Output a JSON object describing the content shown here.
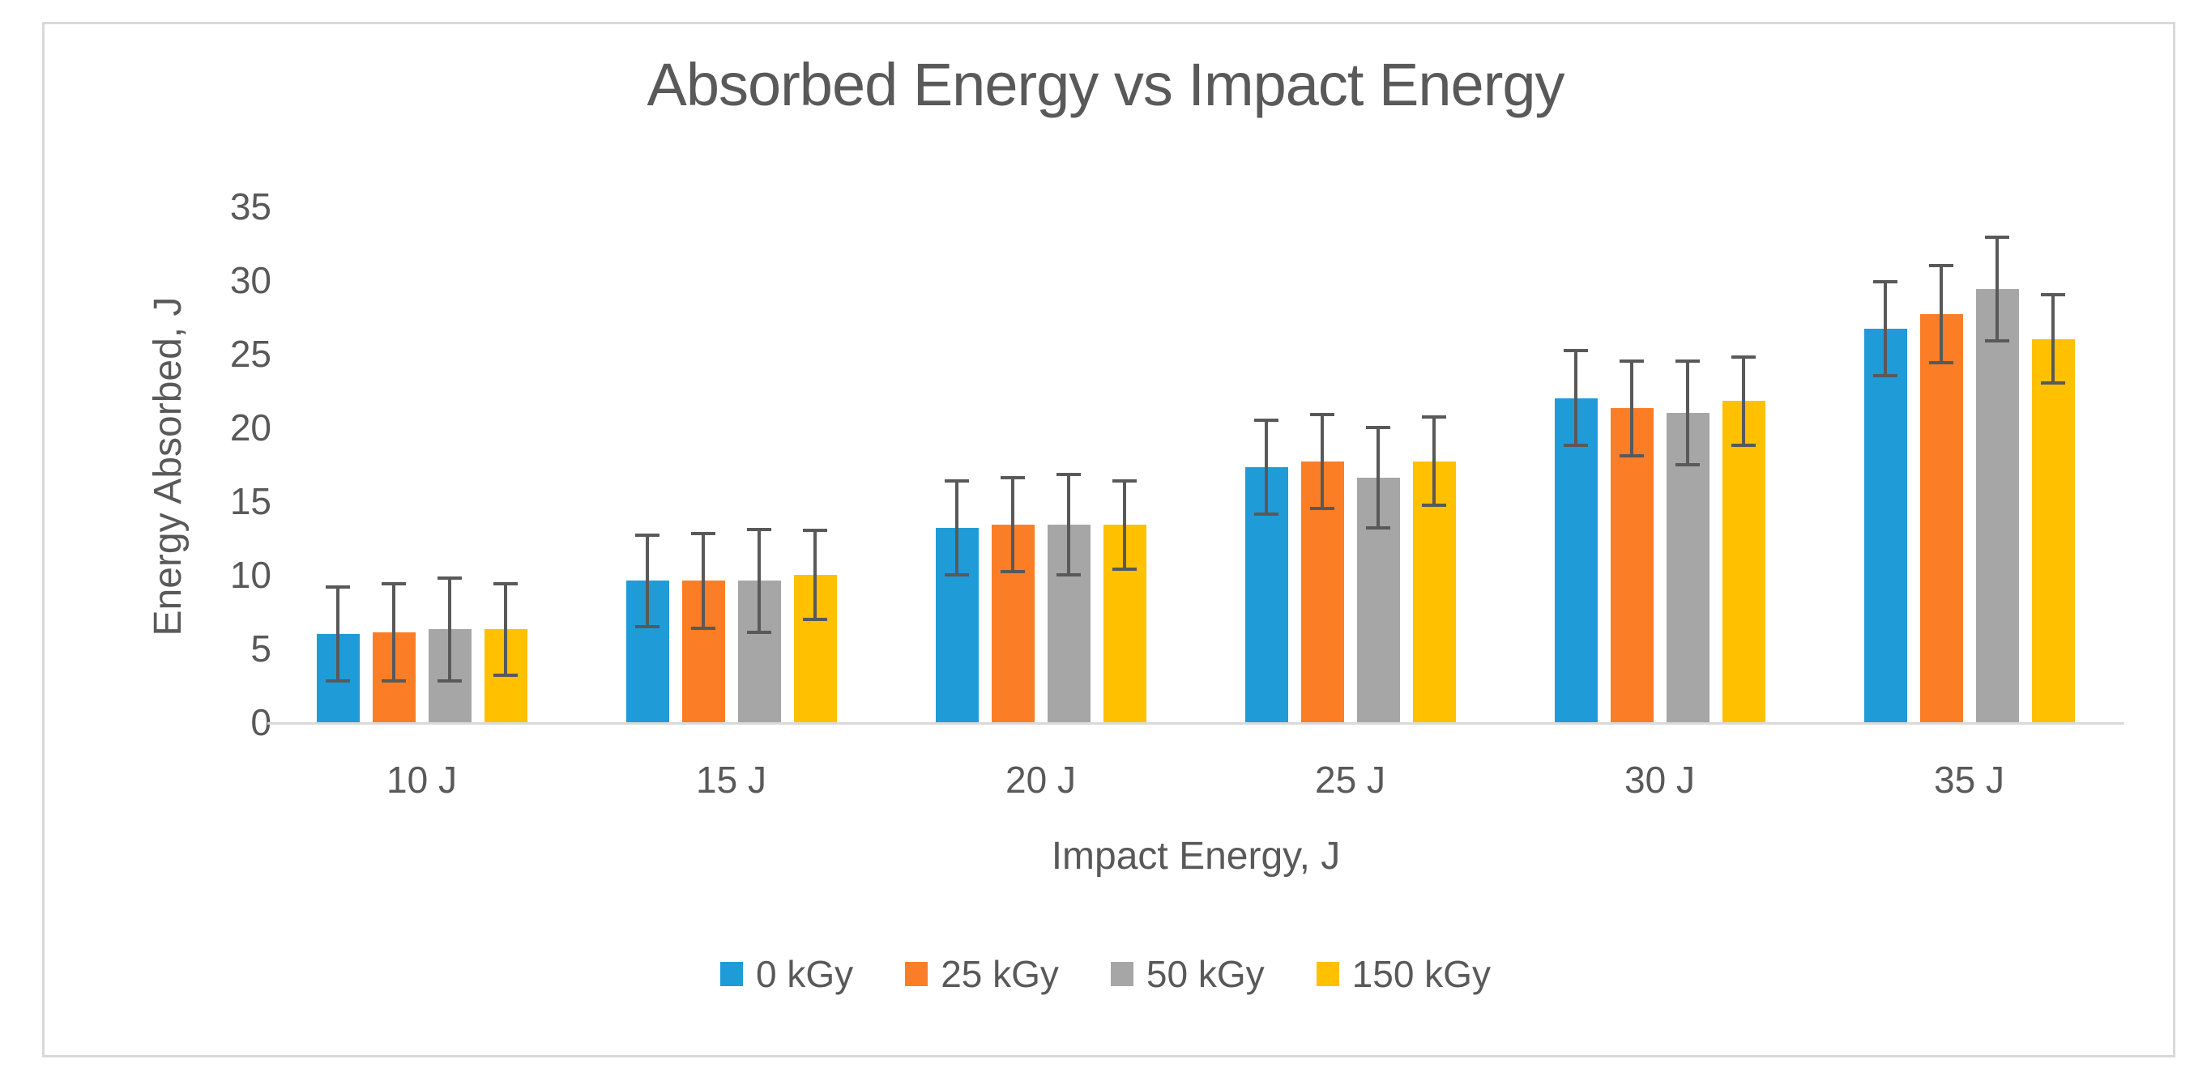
{
  "chart_data": {
    "type": "bar",
    "title": "Absorbed Energy vs Impact Energy",
    "xlabel": "Impact Energy, J",
    "ylabel": "Energy Absorbed, J",
    "categories": [
      "10 J",
      "15 J",
      "20 J",
      "25 J",
      "30 J",
      "35 J"
    ],
    "series": [
      {
        "name": "0 kGy",
        "color": "#1F9CD8",
        "values": [
          6.0,
          9.6,
          13.2,
          17.3,
          22.0,
          26.7
        ],
        "errors": [
          3.2,
          3.1,
          3.2,
          3.2,
          3.2,
          3.2
        ]
      },
      {
        "name": "25 kGy",
        "color": "#FB7E27",
        "values": [
          6.1,
          9.6,
          13.4,
          17.7,
          21.3,
          27.7
        ],
        "errors": [
          3.3,
          3.2,
          3.2,
          3.2,
          3.2,
          3.3
        ]
      },
      {
        "name": "50 kGy",
        "color": "#A6A6A6",
        "values": [
          6.3,
          9.6,
          13.4,
          16.6,
          21.0,
          29.4
        ],
        "errors": [
          3.5,
          3.5,
          3.4,
          3.4,
          3.5,
          3.5
        ]
      },
      {
        "name": "150 kGy",
        "color": "#FFC000",
        "values": [
          6.3,
          10.0,
          13.4,
          17.7,
          21.8,
          26.0
        ],
        "errors": [
          3.1,
          3.0,
          3.0,
          3.0,
          3.0,
          3.0
        ]
      }
    ],
    "ylim": [
      0,
      35
    ],
    "yticks": [
      0,
      5,
      10,
      15,
      20,
      25,
      30,
      35
    ],
    "grid": false,
    "legend_position": "bottom",
    "error_bar_color": "#595959",
    "axis_line_color": "#D9D9D9",
    "text_color": "#595959"
  }
}
